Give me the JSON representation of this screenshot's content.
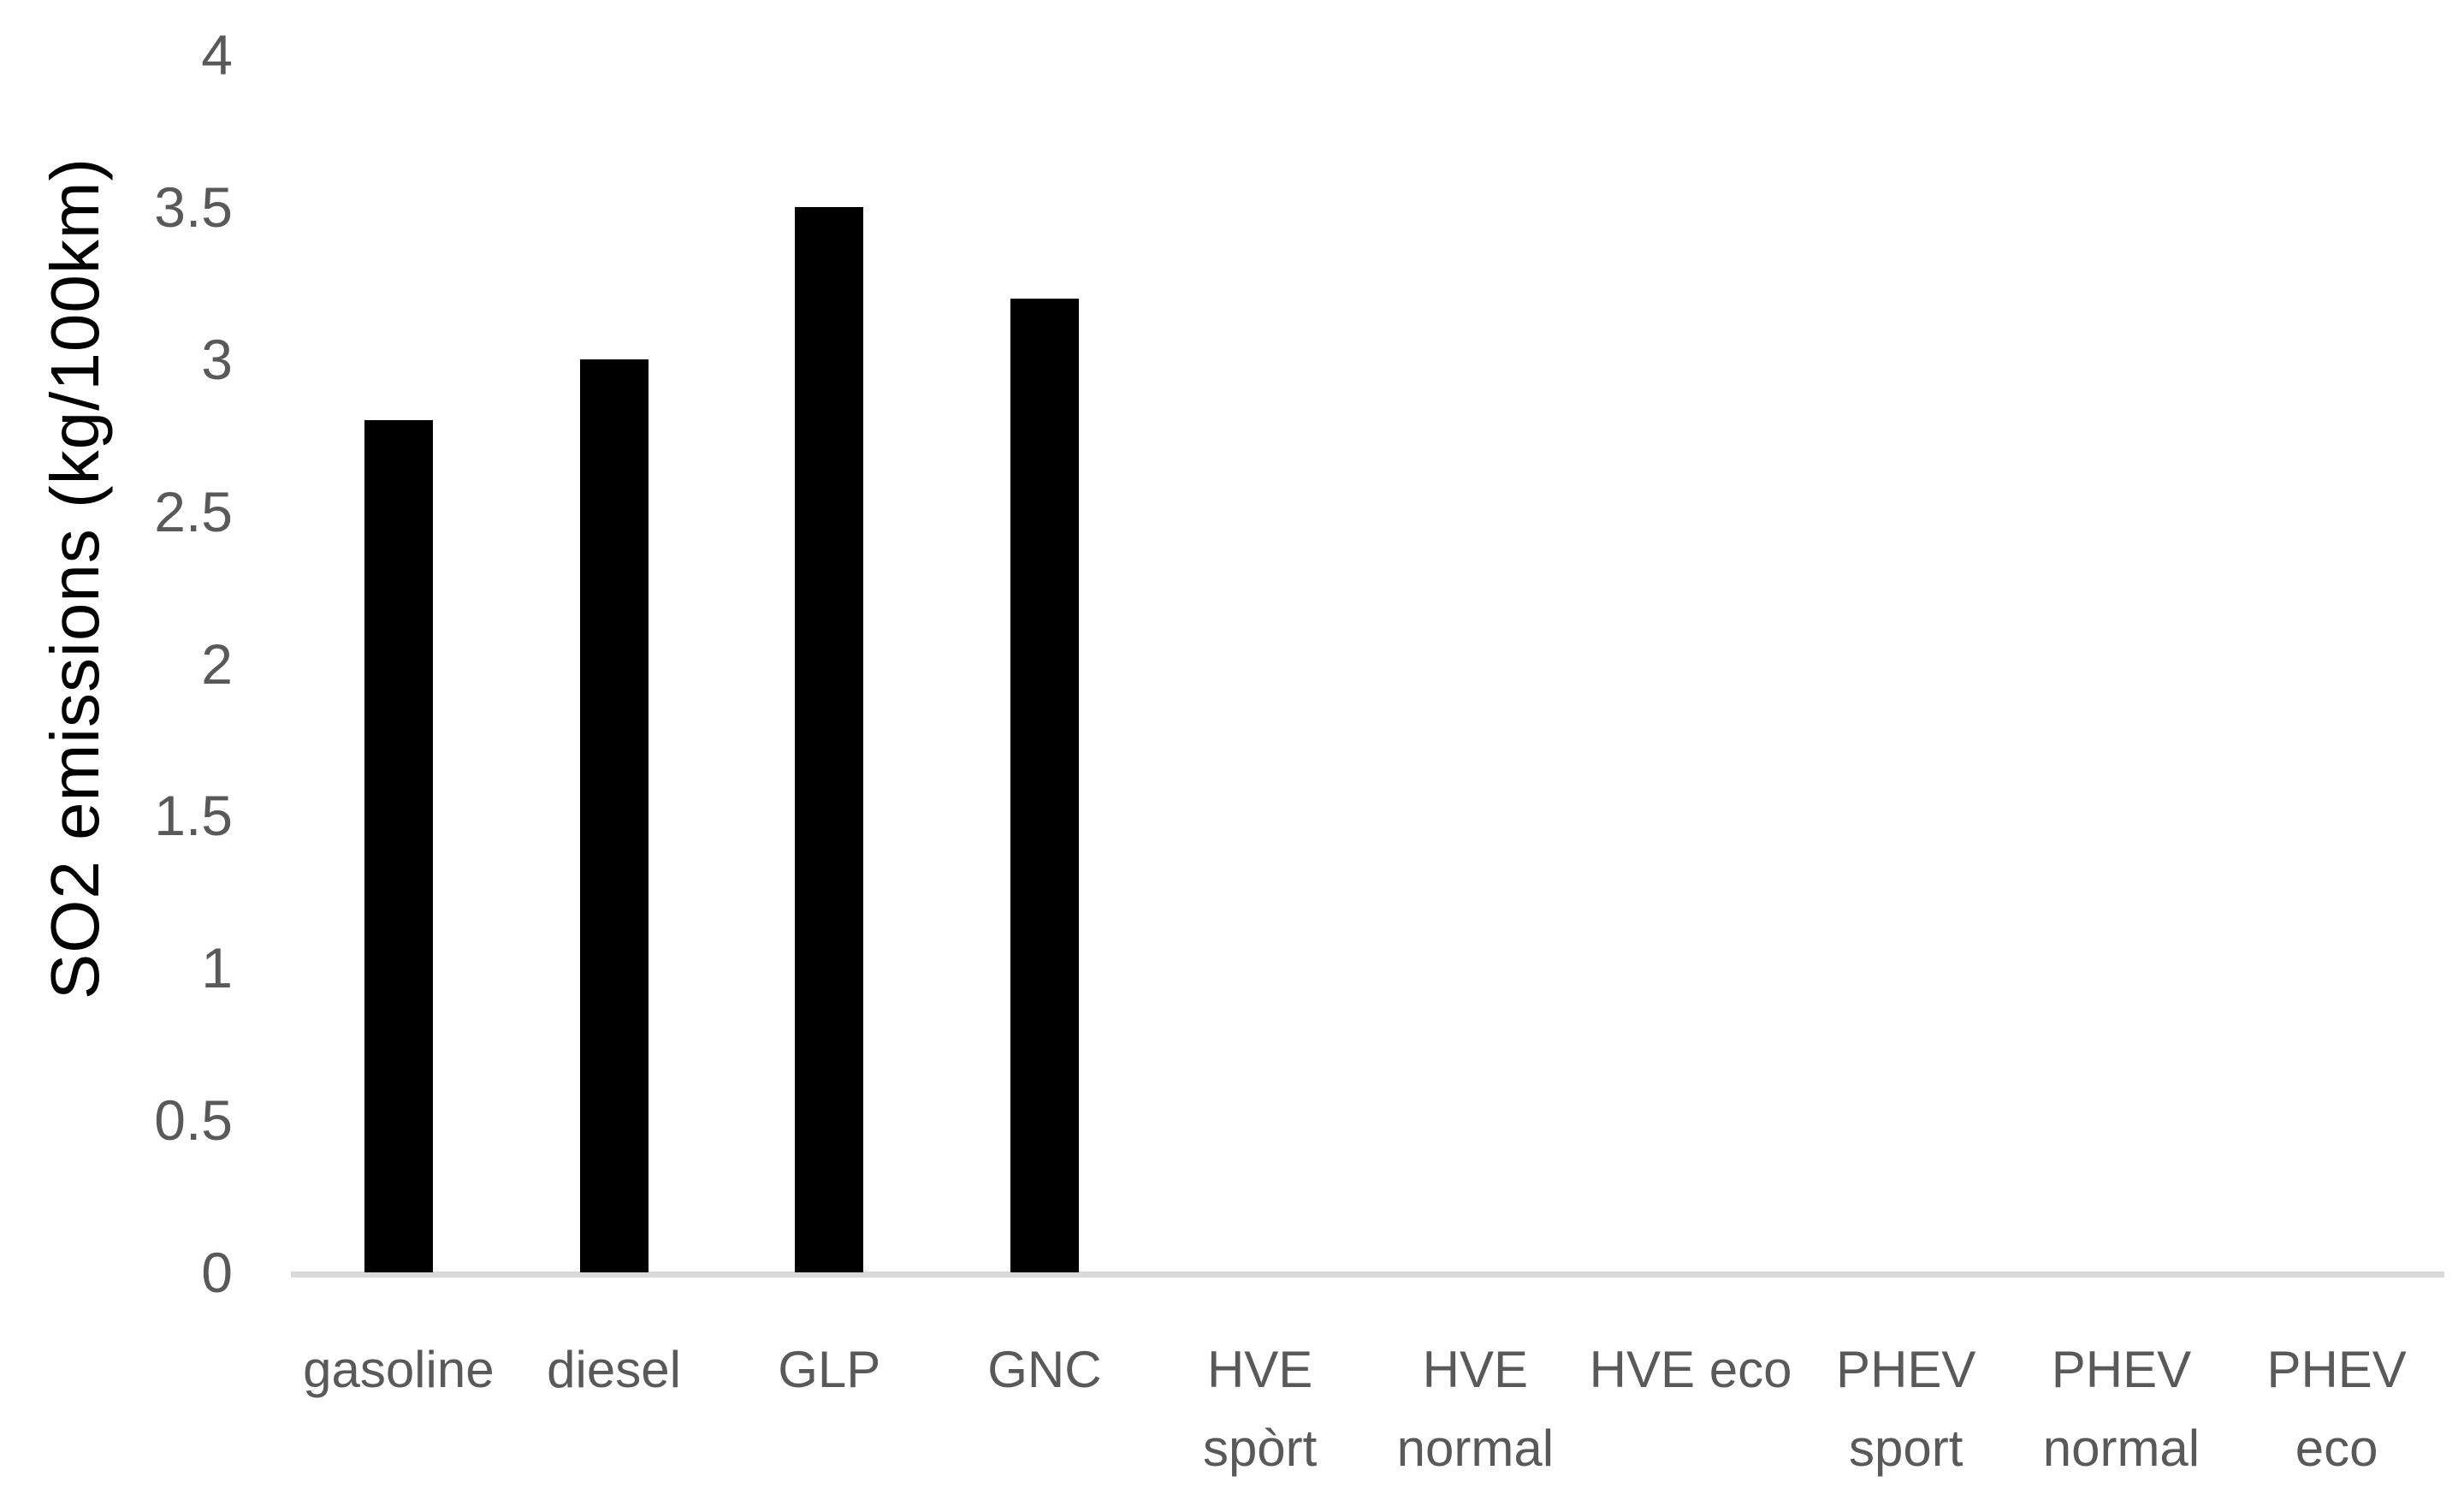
{
  "chart_data": {
    "type": "bar",
    "title": "",
    "xlabel": "",
    "ylabel": "SO2 emissions (kg/100km)",
    "categories": [
      "gasoline",
      "diesel",
      "GLP",
      "GNC",
      "HVE spòrt",
      "HVE normal",
      "HVE eco",
      "PHEV sport",
      "PHEV normal",
      "PHEV eco"
    ],
    "category_lines": [
      [
        "gasoline"
      ],
      [
        "diesel"
      ],
      [
        "GLP"
      ],
      [
        "GNC"
      ],
      [
        "HVE",
        "spòrt"
      ],
      [
        "HVE",
        "normal"
      ],
      [
        "HVE eco"
      ],
      [
        "PHEV",
        "sport"
      ],
      [
        "PHEV",
        "normal"
      ],
      [
        "PHEV",
        "eco"
      ]
    ],
    "values": [
      2.8,
      3.0,
      3.5,
      3.2,
      0,
      0,
      0,
      0,
      0,
      0
    ],
    "ylim": [
      0,
      4
    ],
    "yticks": [
      0,
      0.5,
      1,
      1.5,
      2,
      2.5,
      3,
      3.5,
      4
    ],
    "ytick_labels": [
      "0",
      "0.5",
      "1",
      "1.5",
      "2",
      "2.5",
      "3",
      "3.5",
      "4"
    ],
    "grid": false,
    "legend": null,
    "colors": {
      "bar": "#000000",
      "axis_line": "#d9d9d9",
      "tick_label": "#595959",
      "category_label": "#595959",
      "axis_title": "#000000",
      "background": "#ffffff"
    }
  }
}
